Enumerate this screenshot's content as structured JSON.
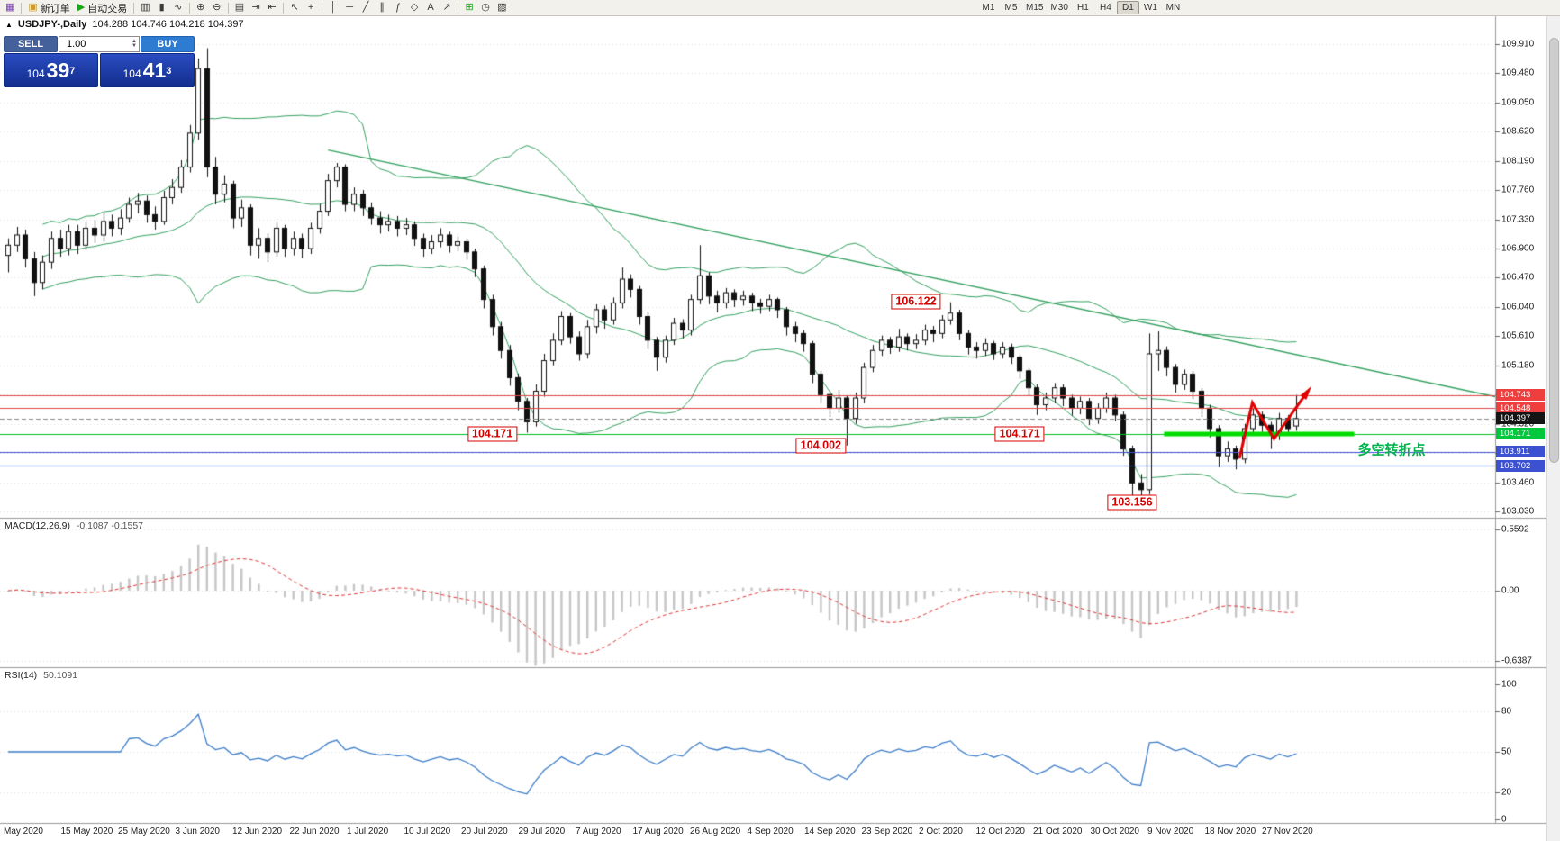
{
  "toolbar": {
    "groups": [
      {
        "items": [
          {
            "name": "new-chart",
            "glyph": "▦",
            "color": "#7a3fae"
          }
        ]
      },
      {
        "items": [
          {
            "name": "new-order",
            "glyph": "▣",
            "color": "#c99b2e",
            "label": "新订单"
          },
          {
            "name": "autotrading",
            "glyph": "▶",
            "color": "#1ca41c",
            "label": "自动交易"
          }
        ]
      },
      {
        "items": [
          {
            "name": "chart-bars",
            "glyph": "▥"
          },
          {
            "name": "chart-candles",
            "glyph": "▮"
          },
          {
            "name": "chart-line",
            "glyph": "∿"
          }
        ]
      },
      {
        "items": [
          {
            "name": "zoom-in",
            "glyph": "⊕"
          },
          {
            "name": "zoom-out",
            "glyph": "⊖"
          }
        ]
      },
      {
        "items": [
          {
            "name": "tile-windows",
            "glyph": "▤"
          },
          {
            "name": "auto-scroll",
            "glyph": "⇥"
          },
          {
            "name": "chart-shift",
            "glyph": "⇤"
          }
        ]
      },
      {
        "items": [
          {
            "name": "cursor",
            "glyph": "↖"
          },
          {
            "name": "crosshair",
            "glyph": "+"
          }
        ]
      },
      {
        "items": [
          {
            "name": "vertical-line",
            "glyph": "│"
          },
          {
            "name": "horizontal-line",
            "glyph": "─"
          },
          {
            "name": "trendline",
            "glyph": "╱"
          },
          {
            "name": "channel",
            "glyph": "∥"
          },
          {
            "name": "fibonacci",
            "glyph": "ƒ"
          },
          {
            "name": "shapes",
            "glyph": "◇"
          },
          {
            "name": "text",
            "glyph": "A"
          },
          {
            "name": "arrows",
            "glyph": "↗"
          }
        ]
      },
      {
        "items": [
          {
            "name": "indicators",
            "glyph": "⊞",
            "color": "#1ca41c"
          },
          {
            "name": "periods",
            "glyph": "◷"
          },
          {
            "name": "templates",
            "glyph": "▨"
          }
        ]
      }
    ],
    "timeframes": [
      "M1",
      "M5",
      "M15",
      "M30",
      "H1",
      "H4",
      "D1",
      "W1",
      "MN"
    ],
    "active_timeframe": "D1"
  },
  "quote": {
    "symbol_arrow": "▲",
    "symbol_title": "USDJPY-,Daily",
    "ohlc": "104.288 104.746 104.218 104.397"
  },
  "trade_panel": {
    "sell_label": "SELL",
    "buy_label": "BUY",
    "volume": "1.00",
    "spin_up": "▲",
    "spin_down": "▼",
    "sell_price_big": "104",
    "sell_price_pips": "39",
    "sell_price_sup": "7",
    "buy_price_big": "104",
    "buy_price_pips": "41",
    "buy_price_sup": "3"
  },
  "chart_data": {
    "type": "candlestick",
    "symbol": "USDJPY",
    "timeframe": "Daily",
    "current_ohlc": {
      "open": 104.288,
      "high": 104.746,
      "low": 104.218,
      "close": 104.397
    },
    "price_axis": {
      "min": 103.03,
      "max": 109.91,
      "step": 0.43
    },
    "price_ticks": [
      "109.910",
      "109.480",
      "109.050",
      "108.620",
      "108.190",
      "107.760",
      "107.330",
      "106.900",
      "106.470",
      "106.040",
      "105.610",
      "105.180",
      "104.750",
      "104.320",
      "103.890",
      "103.460",
      "103.030"
    ],
    "date_labels": [
      "May 2020",
      "15 May 2020",
      "25 May 2020",
      "3 Jun 2020",
      "12 Jun 2020",
      "22 Jun 2020",
      "1 Jul 2020",
      "10 Jul 2020",
      "20 Jul 2020",
      "29 Jul 2020",
      "7 Aug 2020",
      "17 Aug 2020",
      "26 Aug 2020",
      "4 Sep 2020",
      "14 Sep 2020",
      "23 Sep 2020",
      "2 Oct 2020",
      "12 Oct 2020",
      "21 Oct 2020",
      "30 Oct 2020",
      "9 Nov 2020",
      "18 Nov 2020",
      "27 Nov 2020"
    ],
    "candles": [
      [
        106.8,
        107.05,
        106.55,
        106.95
      ],
      [
        106.95,
        107.22,
        106.85,
        107.1
      ],
      [
        107.1,
        107.18,
        106.62,
        106.75
      ],
      [
        106.75,
        106.85,
        106.2,
        106.4
      ],
      [
        106.4,
        106.8,
        106.3,
        106.7
      ],
      [
        106.7,
        107.15,
        106.6,
        107.05
      ],
      [
        107.05,
        107.18,
        106.78,
        106.9
      ],
      [
        106.9,
        107.25,
        106.8,
        107.15
      ],
      [
        107.15,
        107.25,
        106.82,
        106.95
      ],
      [
        106.95,
        107.3,
        106.88,
        107.2
      ],
      [
        107.2,
        107.32,
        106.98,
        107.1
      ],
      [
        107.1,
        107.42,
        107.0,
        107.3
      ],
      [
        107.3,
        107.4,
        107.08,
        107.2
      ],
      [
        107.2,
        107.48,
        107.1,
        107.35
      ],
      [
        107.35,
        107.65,
        107.28,
        107.55
      ],
      [
        107.55,
        107.72,
        107.42,
        107.6
      ],
      [
        107.6,
        107.68,
        107.28,
        107.4
      ],
      [
        107.4,
        107.52,
        107.18,
        107.3
      ],
      [
        107.3,
        107.75,
        107.25,
        107.65
      ],
      [
        107.65,
        107.92,
        107.55,
        107.8
      ],
      [
        107.8,
        108.2,
        107.72,
        108.1
      ],
      [
        108.1,
        108.72,
        108.02,
        108.6
      ],
      [
        108.6,
        109.7,
        108.5,
        109.55
      ],
      [
        109.55,
        109.85,
        107.95,
        108.1
      ],
      [
        108.1,
        108.25,
        107.55,
        107.7
      ],
      [
        107.7,
        107.98,
        107.58,
        107.85
      ],
      [
        107.85,
        107.9,
        107.2,
        107.35
      ],
      [
        107.35,
        107.62,
        107.22,
        107.5
      ],
      [
        107.5,
        107.55,
        106.8,
        106.95
      ],
      [
        106.95,
        107.2,
        106.75,
        107.05
      ],
      [
        107.05,
        107.12,
        106.7,
        106.85
      ],
      [
        106.85,
        107.3,
        106.78,
        107.2
      ],
      [
        107.2,
        107.25,
        106.78,
        106.9
      ],
      [
        106.9,
        107.15,
        106.8,
        107.05
      ],
      [
        107.05,
        107.12,
        106.76,
        106.9
      ],
      [
        106.9,
        107.28,
        106.82,
        107.2
      ],
      [
        107.2,
        107.55,
        107.12,
        107.45
      ],
      [
        107.45,
        108.0,
        107.38,
        107.9
      ],
      [
        107.9,
        108.16,
        107.8,
        108.1
      ],
      [
        108.1,
        108.14,
        107.45,
        107.55
      ],
      [
        107.55,
        107.8,
        107.45,
        107.7
      ],
      [
        107.7,
        107.76,
        107.38,
        107.5
      ],
      [
        107.5,
        107.58,
        107.25,
        107.35
      ],
      [
        107.35,
        107.45,
        107.12,
        107.25
      ],
      [
        107.25,
        107.4,
        107.15,
        107.3
      ],
      [
        107.3,
        107.38,
        107.08,
        107.2
      ],
      [
        107.2,
        107.35,
        107.1,
        107.25
      ],
      [
        107.25,
        107.3,
        106.94,
        107.05
      ],
      [
        107.05,
        107.12,
        106.78,
        106.9
      ],
      [
        106.9,
        107.1,
        106.82,
        107.0
      ],
      [
        107.0,
        107.2,
        106.92,
        107.1
      ],
      [
        107.1,
        107.15,
        106.84,
        106.95
      ],
      [
        106.95,
        107.08,
        106.86,
        107.0
      ],
      [
        107.0,
        107.05,
        106.74,
        106.85
      ],
      [
        106.85,
        106.9,
        106.48,
        106.6
      ],
      [
        106.6,
        106.65,
        106.02,
        106.15
      ],
      [
        106.15,
        106.22,
        105.62,
        105.75
      ],
      [
        105.75,
        105.82,
        105.28,
        105.4
      ],
      [
        105.4,
        105.48,
        104.88,
        105.0
      ],
      [
        105.0,
        105.06,
        104.52,
        104.65
      ],
      [
        104.65,
        104.7,
        104.19,
        104.35
      ],
      [
        104.35,
        104.9,
        104.28,
        104.8
      ],
      [
        104.8,
        105.35,
        104.72,
        105.25
      ],
      [
        105.25,
        105.65,
        105.18,
        105.55
      ],
      [
        105.55,
        105.98,
        105.48,
        105.9
      ],
      [
        105.9,
        105.95,
        105.5,
        105.6
      ],
      [
        105.6,
        105.68,
        105.25,
        105.35
      ],
      [
        105.35,
        105.85,
        105.28,
        105.75
      ],
      [
        105.75,
        106.08,
        105.65,
        106.0
      ],
      [
        106.0,
        106.06,
        105.72,
        105.85
      ],
      [
        105.85,
        106.18,
        105.78,
        106.1
      ],
      [
        106.1,
        106.62,
        106.02,
        106.45
      ],
      [
        106.45,
        106.52,
        106.18,
        106.3
      ],
      [
        106.3,
        106.35,
        105.78,
        105.9
      ],
      [
        105.9,
        105.96,
        105.42,
        105.55
      ],
      [
        105.55,
        105.6,
        105.1,
        105.3
      ],
      [
        105.3,
        105.62,
        105.22,
        105.55
      ],
      [
        105.55,
        105.88,
        105.48,
        105.8
      ],
      [
        105.8,
        105.86,
        105.58,
        105.7
      ],
      [
        105.7,
        106.22,
        105.62,
        106.15
      ],
      [
        106.15,
        106.95,
        106.08,
        106.5
      ],
      [
        106.5,
        106.55,
        106.08,
        106.2
      ],
      [
        106.2,
        106.28,
        105.96,
        106.1
      ],
      [
        106.1,
        106.32,
        106.02,
        106.25
      ],
      [
        106.25,
        106.3,
        106.04,
        106.15
      ],
      [
        106.15,
        106.28,
        106.06,
        106.2
      ],
      [
        106.2,
        106.25,
        105.98,
        106.1
      ],
      [
        106.1,
        106.16,
        105.94,
        106.05
      ],
      [
        106.05,
        106.22,
        105.98,
        106.15
      ],
      [
        106.15,
        106.18,
        105.88,
        106.0
      ],
      [
        106.0,
        106.04,
        105.62,
        105.75
      ],
      [
        105.75,
        105.82,
        105.52,
        105.65
      ],
      [
        105.65,
        105.7,
        105.38,
        105.5
      ],
      [
        105.5,
        105.54,
        104.92,
        105.05
      ],
      [
        105.05,
        105.1,
        104.62,
        104.75
      ],
      [
        104.75,
        104.8,
        104.42,
        104.55
      ],
      [
        104.55,
        104.82,
        104.48,
        104.7
      ],
      [
        104.7,
        104.74,
        104.0,
        104.4
      ],
      [
        104.4,
        104.78,
        104.32,
        104.7
      ],
      [
        104.7,
        105.22,
        104.62,
        105.15
      ],
      [
        105.15,
        105.48,
        105.08,
        105.4
      ],
      [
        105.4,
        105.62,
        105.32,
        105.55
      ],
      [
        105.55,
        105.6,
        105.35,
        105.45
      ],
      [
        105.45,
        105.72,
        105.38,
        105.6
      ],
      [
        105.6,
        105.65,
        105.4,
        105.5
      ],
      [
        105.5,
        105.64,
        105.42,
        105.55
      ],
      [
        105.55,
        105.78,
        105.48,
        105.7
      ],
      [
        105.7,
        105.76,
        105.52,
        105.65
      ],
      [
        105.65,
        105.92,
        105.58,
        105.85
      ],
      [
        105.85,
        106.11,
        105.78,
        105.95
      ],
      [
        105.95,
        106.0,
        105.55,
        105.65
      ],
      [
        105.65,
        105.7,
        105.34,
        105.45
      ],
      [
        105.45,
        105.52,
        105.28,
        105.4
      ],
      [
        105.4,
        105.58,
        105.32,
        105.5
      ],
      [
        105.5,
        105.54,
        105.26,
        105.35
      ],
      [
        105.35,
        105.52,
        105.28,
        105.45
      ],
      [
        105.45,
        105.5,
        105.2,
        105.3
      ],
      [
        105.3,
        105.34,
        104.98,
        105.1
      ],
      [
        105.1,
        105.14,
        104.74,
        104.85
      ],
      [
        104.85,
        104.9,
        104.45,
        104.6
      ],
      [
        104.6,
        104.78,
        104.52,
        104.7
      ],
      [
        104.7,
        104.92,
        104.62,
        104.85
      ],
      [
        104.85,
        104.9,
        104.58,
        104.7
      ],
      [
        104.7,
        104.75,
        104.44,
        104.55
      ],
      [
        104.55,
        104.72,
        104.46,
        104.65
      ],
      [
        104.65,
        104.7,
        104.3,
        104.4
      ],
      [
        104.4,
        104.62,
        104.32,
        104.55
      ],
      [
        104.55,
        104.78,
        104.48,
        104.7
      ],
      [
        104.7,
        104.75,
        104.36,
        104.45
      ],
      [
        104.45,
        104.5,
        103.85,
        103.95
      ],
      [
        103.95,
        104.0,
        103.26,
        103.45
      ],
      [
        103.45,
        103.58,
        103.16,
        103.35
      ],
      [
        103.35,
        105.65,
        103.28,
        105.35
      ],
      [
        105.35,
        105.68,
        105.1,
        105.4
      ],
      [
        105.4,
        105.46,
        105.02,
        105.15
      ],
      [
        105.15,
        105.2,
        104.78,
        104.9
      ],
      [
        104.9,
        105.12,
        104.82,
        105.05
      ],
      [
        105.05,
        105.1,
        104.68,
        104.8
      ],
      [
        104.8,
        104.85,
        104.42,
        104.55
      ],
      [
        104.55,
        104.6,
        104.12,
        104.25
      ],
      [
        104.25,
        104.3,
        103.68,
        103.85
      ],
      [
        103.85,
        104.06,
        103.76,
        103.95
      ],
      [
        103.95,
        104.0,
        103.65,
        103.8
      ],
      [
        103.8,
        104.32,
        103.74,
        104.25
      ],
      [
        104.25,
        104.55,
        104.18,
        104.45
      ],
      [
        104.45,
        104.5,
        104.2,
        104.3
      ],
      [
        104.3,
        104.35,
        103.95,
        104.15
      ],
      [
        104.15,
        104.48,
        104.08,
        104.4
      ],
      [
        104.4,
        104.45,
        104.16,
        104.25
      ],
      [
        104.288,
        104.746,
        104.218,
        104.397
      ]
    ],
    "colors": {
      "bull": "#ffffff",
      "bear": "#111111",
      "wick": "#111111",
      "grid": "#e2e2e2",
      "bb": "#33a05f",
      "trend": "#33a05f",
      "macd_hist": "#c6c6c6",
      "macd_signal": "#e03636",
      "rsi": "#3d7dc8"
    },
    "indicators": {
      "bollinger": {
        "period": 20,
        "deviation": 2
      },
      "macd": {
        "label": "MACD(12,26,9)",
        "values": "-0.1087 -0.1557",
        "axis": [
          {
            "text": "0.5592",
            "value": 0.5592
          },
          {
            "text": "0.00",
            "value": 0
          },
          {
            "text": "-0.6387",
            "value": -0.6387
          }
        ]
      },
      "rsi": {
        "label": "RSI(14)",
        "value": "50.1091",
        "levels": [
          80,
          50,
          20
        ],
        "axis": [
          {
            "text": "100",
            "value": 100
          },
          {
            "text": "80",
            "value": 80
          },
          {
            "text": "50",
            "value": 50
          },
          {
            "text": "20",
            "value": 20
          },
          {
            "text": "0",
            "value": 0
          }
        ]
      }
    },
    "hlines": [
      {
        "text": "104.743",
        "value": 104.743,
        "color": "#e04848",
        "tag": "#ef3e3e"
      },
      {
        "text": "104.548",
        "value": 104.548,
        "color": "#e04848",
        "tag": "#ef3e3e"
      },
      {
        "text": "104.397",
        "value": 104.397,
        "color": "#888888",
        "tag": "#141414",
        "style": "dash",
        "current": true
      },
      {
        "text": "104.171",
        "value": 104.171,
        "color": "#00c020",
        "tag": "#00c83c"
      },
      {
        "text": "103.911",
        "value": 103.911,
        "color": "#3c50d2",
        "tag": "#3c50d2"
      },
      {
        "text": "103.702",
        "value": 103.702,
        "color": "#3c50d2",
        "tag": "#3c50d2"
      }
    ],
    "thick_segment": {
      "price": 104.171,
      "from_index": 134,
      "to_index": 156,
      "width": 5,
      "color": "#00dc00"
    },
    "trendline": {
      "from": {
        "index": 37,
        "price": 108.35
      },
      "to": {
        "index": 172,
        "price": 104.72
      }
    },
    "price_boxes": [
      {
        "text": "106.122",
        "index": 105,
        "price": 106.122
      },
      {
        "text": "104.171",
        "index": 56,
        "price": 104.171
      },
      {
        "text": "104.002",
        "index": 94,
        "price": 104.002
      },
      {
        "text": "104.171",
        "index": 117,
        "price": 104.171
      },
      {
        "text": "103.156",
        "index": 130,
        "price": 103.156
      }
    ],
    "note": {
      "text": "多空转折点",
      "index": 160,
      "price": 103.94,
      "color": "#00b44c"
    },
    "zigzag": {
      "color": "#e00000",
      "points": [
        [
          142.4,
          103.81
        ],
        [
          143.9,
          104.63
        ],
        [
          146.4,
          104.1
        ],
        [
          150.2,
          104.78
        ]
      ]
    }
  }
}
